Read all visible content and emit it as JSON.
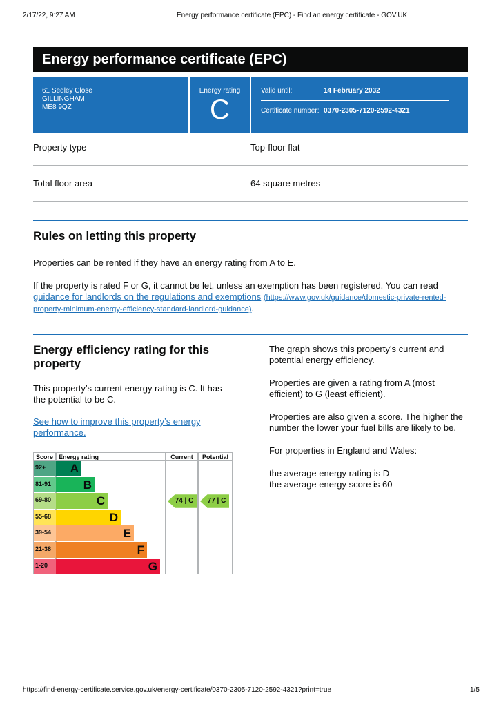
{
  "print_header": {
    "date": "2/17/22, 9:27 AM",
    "title": "Energy performance certificate (EPC) - Find an energy certificate - GOV.UK"
  },
  "banner": {
    "title": "Energy performance certificate (EPC)"
  },
  "summary": {
    "address": [
      "61 Sedley Close",
      "GILLINGHAM",
      "ME8 9QZ"
    ],
    "rating_label": "Energy rating",
    "rating": "C",
    "valid_until_label": "Valid until:",
    "valid_until": "14 February 2032",
    "certificate_label": "Certificate number:",
    "certificate_number": "0370-2305-7120-2592-4321"
  },
  "property": [
    {
      "label": "Property type",
      "value": "Top-floor flat"
    },
    {
      "label": "Total floor area",
      "value": "64 square metres"
    }
  ],
  "letting": {
    "heading": "Rules on letting this property",
    "paragraph_1": "Properties can be rented if they have an energy rating from A to E.",
    "paragraph_2": "If the property is rated F or G, it cannot be let, unless an exemption has been registered. You can read",
    "link_text": "guidance for landlords on the regulations and exemptions",
    "link_url": "(https://www.gov.uk/guidance/domestic-private-rented-property-minimum-energy-efficiency-standard-landlord-guidance)",
    "paragraph_2_end": "."
  },
  "efficiency": {
    "heading": "Energy efficiency rating for this property",
    "paragraph": "This property’s current energy rating is C. It has the potential to be C.",
    "link_text": "See how to improve this property’s energy performance.",
    "graph": {
      "headers": [
        "Score",
        "Energy rating",
        "Current",
        "Potential"
      ],
      "bands": [
        {
          "score": "92+",
          "letter": "A",
          "color": "#008054",
          "score_color": "#4fa585"
        },
        {
          "score": "81-91",
          "letter": "B",
          "color": "#19b459",
          "score_color": "#62c98b"
        },
        {
          "score": "69-80",
          "letter": "C",
          "color": "#8dce46",
          "score_color": "#b5dd88"
        },
        {
          "score": "55-68",
          "letter": "D",
          "color": "#ffd500",
          "score_color": "#ffe457"
        },
        {
          "score": "39-54",
          "letter": "E",
          "color": "#fcaa65",
          "score_color": "#fdc596"
        },
        {
          "score": "21-38",
          "letter": "F",
          "color": "#ef8023",
          "score_color": "#f4a868"
        },
        {
          "score": "1-20",
          "letter": "G",
          "color": "#e9153b",
          "score_color": "#f0627b"
        }
      ],
      "current": "74 | C",
      "potential": "77 | C"
    },
    "explanation": [
      "The graph shows this property’s current and potential energy efficiency.",
      "Properties are given a rating from A (most efficient) to G (least efficient).",
      "Properties are also given a score. The higher the number the lower your fuel bills are likely to be.",
      "For properties in England and Wales:"
    ],
    "averages": [
      "the average energy rating is D",
      "the average energy score is 60"
    ]
  },
  "footer": {
    "url": "https://find-energy-certificate.service.gov.uk/energy-certificate/0370-2305-7120-2592-4321?print=true",
    "page": "1/5"
  }
}
